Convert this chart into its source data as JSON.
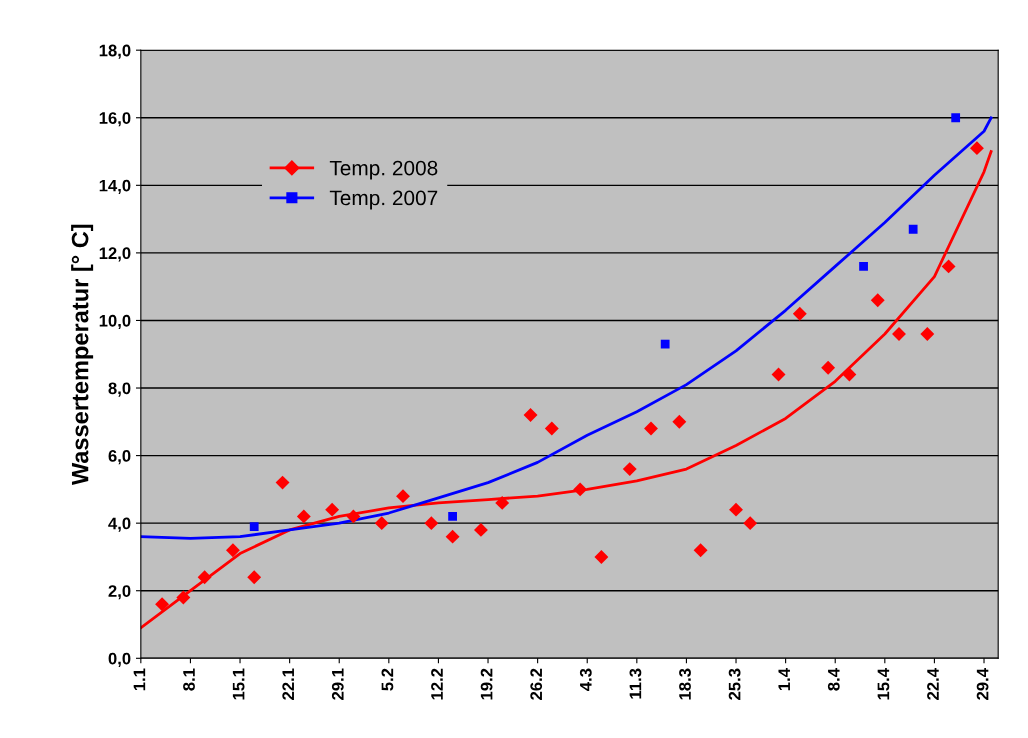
{
  "chart_data": {
    "type": "scatter",
    "ylabel": "Wassertemperatur [° C]",
    "xlim": [
      "2008-01-01",
      "2008-05-01"
    ],
    "xticks": [
      {
        "value": "2008-01-01",
        "label": "1.1"
      },
      {
        "value": "2008-01-08",
        "label": "8.1"
      },
      {
        "value": "2008-01-15",
        "label": "15.1"
      },
      {
        "value": "2008-01-22",
        "label": "22.1"
      },
      {
        "value": "2008-01-29",
        "label": "29.1"
      },
      {
        "value": "2008-02-05",
        "label": "5.2"
      },
      {
        "value": "2008-02-12",
        "label": "12.2"
      },
      {
        "value": "2008-02-19",
        "label": "19.2"
      },
      {
        "value": "2008-02-26",
        "label": "26.2"
      },
      {
        "value": "2008-03-04",
        "label": "4.3"
      },
      {
        "value": "2008-03-11",
        "label": "11.3"
      },
      {
        "value": "2008-03-18",
        "label": "18.3"
      },
      {
        "value": "2008-03-25",
        "label": "25.3"
      },
      {
        "value": "2008-04-01",
        "label": "1.4"
      },
      {
        "value": "2008-04-08",
        "label": "8.4"
      },
      {
        "value": "2008-04-15",
        "label": "15.4"
      },
      {
        "value": "2008-04-22",
        "label": "22.4"
      },
      {
        "value": "2008-04-29",
        "label": "29.4"
      }
    ],
    "ylim": [
      0,
      18
    ],
    "yticks": [
      {
        "value": 0,
        "label": "0,0"
      },
      {
        "value": 2,
        "label": "2,0"
      },
      {
        "value": 4,
        "label": "4,0"
      },
      {
        "value": 6,
        "label": "6,0"
      },
      {
        "value": 8,
        "label": "8,0"
      },
      {
        "value": 10,
        "label": "10,0"
      },
      {
        "value": 12,
        "label": "12,0"
      },
      {
        "value": 14,
        "label": "14,0"
      },
      {
        "value": 16,
        "label": "16,0"
      },
      {
        "value": 18,
        "label": "18,0"
      }
    ],
    "grid": "y",
    "legend": "top left",
    "series": [
      {
        "name": "Temp. 2008",
        "marker": "diamond",
        "color": "#ff0000",
        "x": [
          "2008-01-04",
          "2008-01-07",
          "2008-01-10",
          "2008-01-14",
          "2008-01-17",
          "2008-01-21",
          "2008-01-24",
          "2008-01-28",
          "2008-01-31",
          "2008-02-04",
          "2008-02-07",
          "2008-02-11",
          "2008-02-14",
          "2008-02-18",
          "2008-02-21",
          "2008-02-25",
          "2008-02-28",
          "2008-03-03",
          "2008-03-06",
          "2008-03-10",
          "2008-03-13",
          "2008-03-17",
          "2008-03-20",
          "2008-03-25",
          "2008-03-27",
          "2008-03-31",
          "2008-04-03",
          "2008-04-07",
          "2008-04-10",
          "2008-04-14",
          "2008-04-17",
          "2008-04-21",
          "2008-04-24",
          "2008-04-28"
        ],
        "values": [
          1.6,
          1.8,
          2.4,
          3.2,
          2.4,
          5.2,
          4.2,
          4.4,
          4.2,
          4.0,
          4.8,
          4.0,
          3.6,
          3.8,
          4.6,
          7.2,
          6.8,
          5.0,
          3.0,
          5.6,
          6.8,
          7.0,
          3.2,
          4.4,
          4.0,
          8.4,
          10.2,
          8.6,
          8.4,
          10.6,
          9.6,
          9.6,
          11.6,
          15.1
        ]
      },
      {
        "name": "Temp. 2007",
        "marker": "square",
        "color": "#0000ff",
        "x": [
          "2008-01-17",
          "2008-02-14",
          "2008-03-15",
          "2008-04-12",
          "2008-04-19",
          "2008-04-25"
        ],
        "values": [
          3.9,
          4.2,
          9.3,
          11.6,
          12.7,
          16.0
        ]
      },
      {
        "type": "line",
        "color": "#ff0000",
        "marker": "none",
        "x": [
          "2008-01-01",
          "2008-01-08",
          "2008-01-15",
          "2008-01-22",
          "2008-01-29",
          "2008-02-05",
          "2008-02-12",
          "2008-02-19",
          "2008-02-26",
          "2008-03-04",
          "2008-03-11",
          "2008-03-18",
          "2008-03-25",
          "2008-04-01",
          "2008-04-08",
          "2008-04-15",
          "2008-04-22",
          "2008-04-29",
          "2008-04-30"
        ],
        "values": [
          0.9,
          2.0,
          3.1,
          3.8,
          4.2,
          4.45,
          4.6,
          4.7,
          4.8,
          5.0,
          5.25,
          5.6,
          6.3,
          7.1,
          8.2,
          9.6,
          11.3,
          14.4,
          15.0
        ]
      },
      {
        "type": "line",
        "color": "#0000ff",
        "marker": "none",
        "x": [
          "2008-01-01",
          "2008-01-08",
          "2008-01-15",
          "2008-01-22",
          "2008-01-29",
          "2008-02-05",
          "2008-02-12",
          "2008-02-19",
          "2008-02-26",
          "2008-03-04",
          "2008-03-11",
          "2008-03-18",
          "2008-03-25",
          "2008-04-01",
          "2008-04-08",
          "2008-04-15",
          "2008-04-22",
          "2008-04-29",
          "2008-04-30"
        ],
        "values": [
          3.6,
          3.55,
          3.6,
          3.8,
          4.0,
          4.3,
          4.75,
          5.2,
          5.8,
          6.6,
          7.3,
          8.1,
          9.1,
          10.3,
          11.6,
          12.9,
          14.3,
          15.6,
          16.0
        ]
      }
    ]
  }
}
